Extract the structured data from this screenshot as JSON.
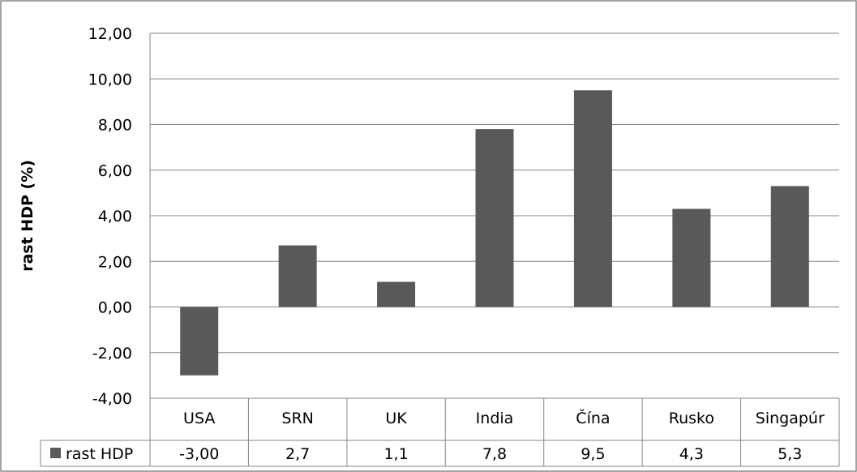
{
  "chart_data": {
    "type": "bar",
    "ylabel": "rast HDP (%)",
    "categories": [
      "USA",
      "SRN",
      "UK",
      "India",
      "Čína",
      "Rusko",
      "Singapúr"
    ],
    "series": [
      {
        "name": "rast HDP",
        "values": [
          -3.0,
          2.7,
          1.1,
          7.8,
          9.5,
          4.3,
          5.3
        ],
        "table_labels": [
          "-3,00",
          "2,7",
          "1,1",
          "7,8",
          "9,5",
          "4,3",
          "5,3"
        ]
      }
    ],
    "yticks": [
      "-4,00",
      "-2,00",
      "0,00",
      "2,00",
      "4,00",
      "6,00",
      "8,00",
      "10,00",
      "12,00"
    ],
    "ylim": [
      -4,
      12
    ],
    "grid": true,
    "data_table": true,
    "legend": "data-table",
    "colors": {
      "bar": "#595959",
      "grid": "#868686",
      "border": "#868686"
    }
  }
}
